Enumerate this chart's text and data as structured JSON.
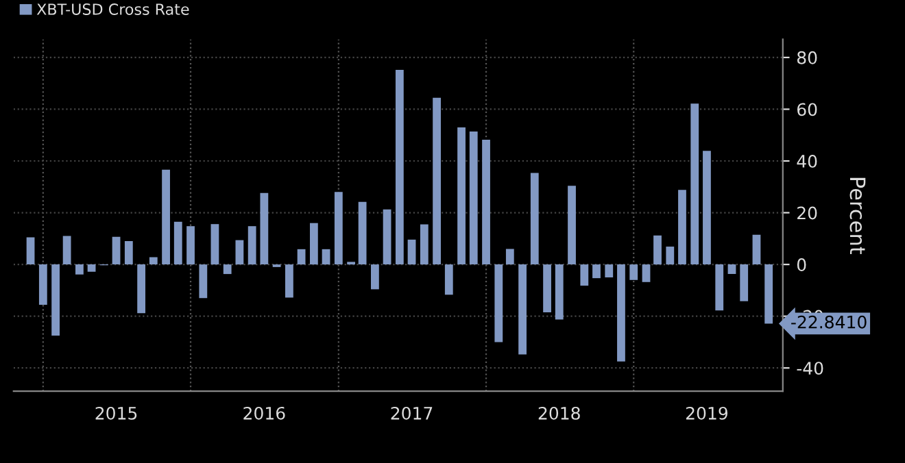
{
  "chart_data": {
    "type": "bar",
    "ylabel": "Percent",
    "x": [
      "2014-12",
      "2015-01",
      "2015-02",
      "2015-03",
      "2015-04",
      "2015-05",
      "2015-06",
      "2015-07",
      "2015-08",
      "2015-09",
      "2015-10",
      "2015-11",
      "2015-12",
      "2016-01",
      "2016-02",
      "2016-03",
      "2016-04",
      "2016-05",
      "2016-06",
      "2016-07",
      "2016-08",
      "2016-09",
      "2016-10",
      "2016-11",
      "2016-12",
      "2017-01",
      "2017-02",
      "2017-03",
      "2017-04",
      "2017-05",
      "2017-06",
      "2017-07",
      "2017-08",
      "2017-09",
      "2017-10",
      "2017-11",
      "2017-12",
      "2018-01",
      "2018-02",
      "2018-03",
      "2018-04",
      "2018-05",
      "2018-06",
      "2018-07",
      "2018-08",
      "2018-09",
      "2018-10",
      "2018-11",
      "2018-12",
      "2019-01",
      "2019-02",
      "2019-03",
      "2019-04",
      "2019-05",
      "2019-06",
      "2019-07",
      "2019-08",
      "2019-09",
      "2019-10",
      "2019-11",
      "2019-12"
    ],
    "series": [
      {
        "name": "XBT-USD Cross Rate",
        "color": "#8299c4",
        "values": [
          10.5,
          -15.6,
          -27.5,
          11,
          -3.9,
          -2.8,
          -0.3,
          10.7,
          9,
          -18.8,
          2.8,
          36.6,
          16.5,
          14.8,
          -13,
          15.6,
          -3.7,
          9.4,
          14.8,
          27.6,
          -1,
          -12.8,
          5.9,
          16,
          5.9,
          28,
          1,
          24.2,
          -9.6,
          21.3,
          75.2,
          9.6,
          15.5,
          64.4,
          -11.7,
          53,
          51.4,
          48.2,
          -30,
          6,
          -34.8,
          35.4,
          -18.5,
          -21.3,
          30.4,
          -8.2,
          -5.3,
          -5,
          -37.5,
          -6,
          -6.8,
          11.2,
          6.9,
          28.8,
          62.2,
          43.9,
          -17.8,
          -3.7,
          -14.2,
          11.5,
          -22.841
        ]
      }
    ],
    "xlim": [
      "2014-10-20",
      "2020-01-05"
    ],
    "xticks": [
      {
        "value": "2015-07-01",
        "label": "2015"
      },
      {
        "value": "2016-07-01",
        "label": "2016"
      },
      {
        "value": "2017-07-01",
        "label": "2017"
      },
      {
        "value": "2018-07-01",
        "label": "2018"
      },
      {
        "value": "2019-07-01",
        "label": "2019"
      }
    ],
    "ylim": [
      -49,
      87
    ],
    "yticks": [
      -40,
      -20,
      0,
      20,
      40,
      60,
      80
    ],
    "ref_lines": [
      {
        "axis": "x",
        "value": "2015-01-01",
        "color": "#555555",
        "line_style": "dotted"
      },
      {
        "axis": "x",
        "value": "2016-01-01",
        "color": "#555555",
        "line_style": "dotted"
      },
      {
        "axis": "x",
        "value": "2017-01-01",
        "color": "#555555",
        "line_style": "dotted"
      },
      {
        "axis": "x",
        "value": "2018-01-01",
        "color": "#555555",
        "line_style": "dotted"
      },
      {
        "axis": "x",
        "value": "2019-01-01",
        "color": "#555555",
        "line_style": "dotted"
      }
    ],
    "annotations": [
      "-22.8410"
    ],
    "grid": "y",
    "legend": "top left"
  }
}
